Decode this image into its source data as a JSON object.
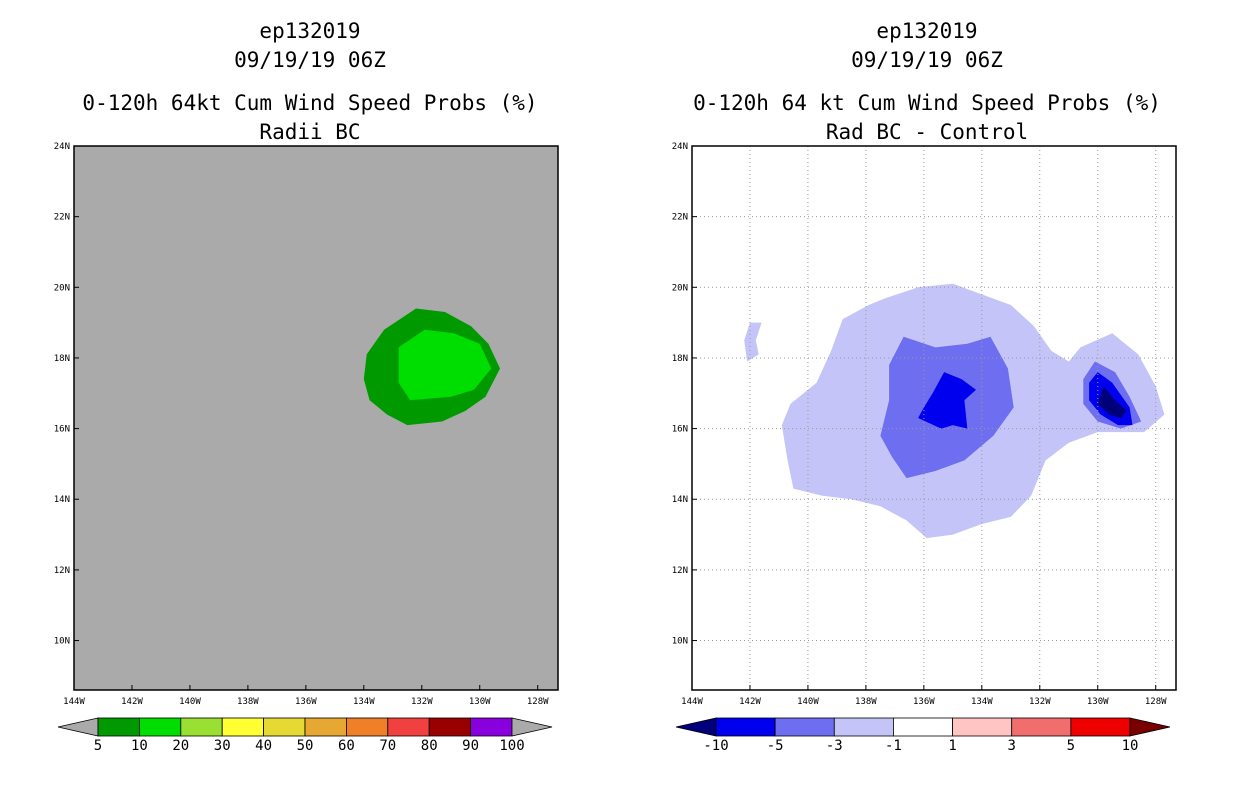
{
  "chart_data": [
    {
      "type": "heatmap",
      "title_lines": [
        "ep132019",
        "09/19/19 06Z",
        "0-120h 64kt Cum Wind Speed Probs (%)",
        "Radii BC"
      ],
      "grid": false,
      "lon_labels": [
        "144W",
        "142W",
        "140W",
        "138W",
        "136W",
        "134W",
        "132W",
        "130W",
        "128W"
      ],
      "lon_values": [
        -144,
        -142,
        -140,
        -138,
        -136,
        -134,
        -132,
        -130,
        -128
      ],
      "lat_labels": [
        "24N",
        "22N",
        "20N",
        "18N",
        "16N",
        "14N",
        "12N",
        "10N"
      ],
      "lat_values": [
        24,
        22,
        20,
        18,
        16,
        14,
        12,
        10
      ],
      "xlim": [
        -144,
        -127.3
      ],
      "ylim": [
        8.6,
        24
      ],
      "background_color": "#aaaaaa",
      "colorbar": {
        "labels": [
          "5",
          "10",
          "20",
          "30",
          "40",
          "50",
          "60",
          "70",
          "80",
          "90",
          "100"
        ],
        "colors": [
          "#009900",
          "#00dd00",
          "#99e033",
          "#ffff33",
          "#e6d933",
          "#e6a833",
          "#f08028",
          "#f04040",
          "#990000",
          "#8800dd"
        ],
        "under_color": "#aaaaaa",
        "over_color": "#aaaaaa"
      },
      "contours": [
        {
          "level": "5-10",
          "color": "#009900",
          "points": [
            [
              -132.2,
              19.4
            ],
            [
              -131.2,
              19.3
            ],
            [
              -130.3,
              18.9
            ],
            [
              -129.7,
              18.4
            ],
            [
              -129.3,
              17.7
            ],
            [
              -129.8,
              16.9
            ],
            [
              -130.5,
              16.5
            ],
            [
              -131.3,
              16.2
            ],
            [
              -132.5,
              16.1
            ],
            [
              -133.2,
              16.4
            ],
            [
              -133.8,
              16.8
            ],
            [
              -134.0,
              17.4
            ],
            [
              -133.9,
              18.1
            ],
            [
              -133.3,
              18.8
            ]
          ]
        },
        {
          "level": "10-20",
          "color": "#00dd00",
          "points": [
            [
              -131.9,
              18.8
            ],
            [
              -130.9,
              18.7
            ],
            [
              -130.0,
              18.4
            ],
            [
              -129.6,
              17.7
            ],
            [
              -130.2,
              17.1
            ],
            [
              -131.0,
              16.9
            ],
            [
              -132.4,
              16.8
            ],
            [
              -132.8,
              17.3
            ],
            [
              -132.8,
              18.3
            ]
          ]
        }
      ]
    },
    {
      "type": "heatmap",
      "title_lines": [
        "ep132019",
        "09/19/19 06Z",
        "0-120h 64 kt Cum Wind Speed Probs (%)",
        "Rad BC - Control"
      ],
      "grid": true,
      "lon_labels": [
        "144W",
        "142W",
        "140W",
        "138W",
        "136W",
        "134W",
        "132W",
        "130W",
        "128W"
      ],
      "lon_values": [
        -144,
        -142,
        -140,
        -138,
        -136,
        -134,
        -132,
        -130,
        -128
      ],
      "lat_labels": [
        "24N",
        "22N",
        "20N",
        "18N",
        "16N",
        "14N",
        "12N",
        "10N"
      ],
      "lat_values": [
        24,
        22,
        20,
        18,
        16,
        14,
        12,
        10
      ],
      "xlim": [
        -144,
        -127.3
      ],
      "ylim": [
        8.6,
        24
      ],
      "background_color": "#ffffff",
      "colorbar": {
        "labels": [
          "-10",
          "-5",
          "-3",
          "-1",
          "1",
          "3",
          "5",
          "10"
        ],
        "colors": [
          "#0000ee",
          "#6e6ef0",
          "#c4c4f8",
          "#ffffff",
          "#ffc4c4",
          "#f06e6e",
          "#ee0000"
        ],
        "under_color": "#00007a",
        "over_color": "#7a0000"
      },
      "contours": [
        {
          "level": "-3 to -1",
          "color": "#c4c4f8",
          "points": [
            [
              -137.3,
              19.7
            ],
            [
              -136.2,
              20.0
            ],
            [
              -135.0,
              20.1
            ],
            [
              -134.0,
              19.8
            ],
            [
              -133.0,
              19.5
            ],
            [
              -132.2,
              18.9
            ],
            [
              -131.6,
              18.2
            ],
            [
              -131.0,
              17.9
            ],
            [
              -130.6,
              18.3
            ],
            [
              -129.5,
              18.7
            ],
            [
              -128.6,
              18.1
            ],
            [
              -128.0,
              17.2
            ],
            [
              -127.7,
              16.4
            ],
            [
              -128.4,
              15.9
            ],
            [
              -130.0,
              15.9
            ],
            [
              -131.0,
              15.6
            ],
            [
              -131.8,
              15.1
            ],
            [
              -132.3,
              14.1
            ],
            [
              -133.0,
              13.5
            ],
            [
              -134.0,
              13.3
            ],
            [
              -135.0,
              13.0
            ],
            [
              -135.9,
              12.9
            ],
            [
              -136.6,
              13.4
            ],
            [
              -137.5,
              13.8
            ],
            [
              -138.5,
              14.0
            ],
            [
              -139.5,
              14.1
            ],
            [
              -140.5,
              14.3
            ],
            [
              -140.7,
              15.1
            ],
            [
              -140.9,
              16.1
            ],
            [
              -140.6,
              16.7
            ],
            [
              -139.7,
              17.3
            ],
            [
              -139.2,
              18.2
            ],
            [
              -138.8,
              19.1
            ],
            [
              -137.9,
              19.5
            ]
          ]
        },
        {
          "level": "-3 to -1 (small)",
          "color": "#c4c4f8",
          "points": [
            [
              -142.0,
              19.0
            ],
            [
              -141.6,
              19.0
            ],
            [
              -141.8,
              18.5
            ],
            [
              -141.7,
              18.1
            ],
            [
              -142.1,
              17.9
            ],
            [
              -142.2,
              18.5
            ]
          ]
        },
        {
          "level": "-5 to -3",
          "color": "#6e6ef0",
          "points": [
            [
              -136.7,
              18.6
            ],
            [
              -135.6,
              18.3
            ],
            [
              -134.5,
              18.4
            ],
            [
              -133.7,
              18.6
            ],
            [
              -133.1,
              17.7
            ],
            [
              -132.9,
              16.6
            ],
            [
              -133.6,
              15.8
            ],
            [
              -134.6,
              15.1
            ],
            [
              -135.6,
              14.8
            ],
            [
              -136.6,
              14.6
            ],
            [
              -137.1,
              15.2
            ],
            [
              -137.5,
              15.8
            ],
            [
              -137.2,
              16.8
            ],
            [
              -137.2,
              17.8
            ]
          ]
        },
        {
          "level": "-5 to -3 (east)",
          "color": "#6e6ef0",
          "points": [
            [
              -130.1,
              17.9
            ],
            [
              -129.4,
              17.6
            ],
            [
              -128.9,
              16.9
            ],
            [
              -128.5,
              16.2
            ],
            [
              -129.2,
              16.0
            ],
            [
              -130.0,
              16.2
            ],
            [
              -130.5,
              16.7
            ],
            [
              -130.5,
              17.4
            ]
          ]
        },
        {
          "level": "-10 to -5",
          "color": "#0000ee",
          "points": [
            [
              -135.3,
              17.6
            ],
            [
              -134.7,
              17.4
            ],
            [
              -134.2,
              17.1
            ],
            [
              -134.6,
              16.8
            ],
            [
              -134.5,
              16.0
            ],
            [
              -135.0,
              16.1
            ],
            [
              -135.4,
              16.0
            ],
            [
              -136.2,
              16.3
            ],
            [
              -136.0,
              16.6
            ],
            [
              -135.7,
              17.0
            ]
          ]
        },
        {
          "level": "-10 to -5 (east)",
          "color": "#0000ee",
          "points": [
            [
              -130.0,
              17.6
            ],
            [
              -129.5,
              17.3
            ],
            [
              -128.9,
              16.6
            ],
            [
              -128.8,
              16.1
            ],
            [
              -129.3,
              16.1
            ],
            [
              -129.9,
              16.4
            ],
            [
              -130.3,
              16.8
            ],
            [
              -130.3,
              17.3
            ]
          ]
        },
        {
          "level": "< -10",
          "color": "#00007a",
          "points": [
            [
              -129.8,
              17.2
            ],
            [
              -129.4,
              16.8
            ],
            [
              -129.0,
              16.5
            ],
            [
              -129.2,
              16.3
            ],
            [
              -129.6,
              16.4
            ],
            [
              -130.0,
              16.7
            ]
          ]
        }
      ]
    }
  ]
}
